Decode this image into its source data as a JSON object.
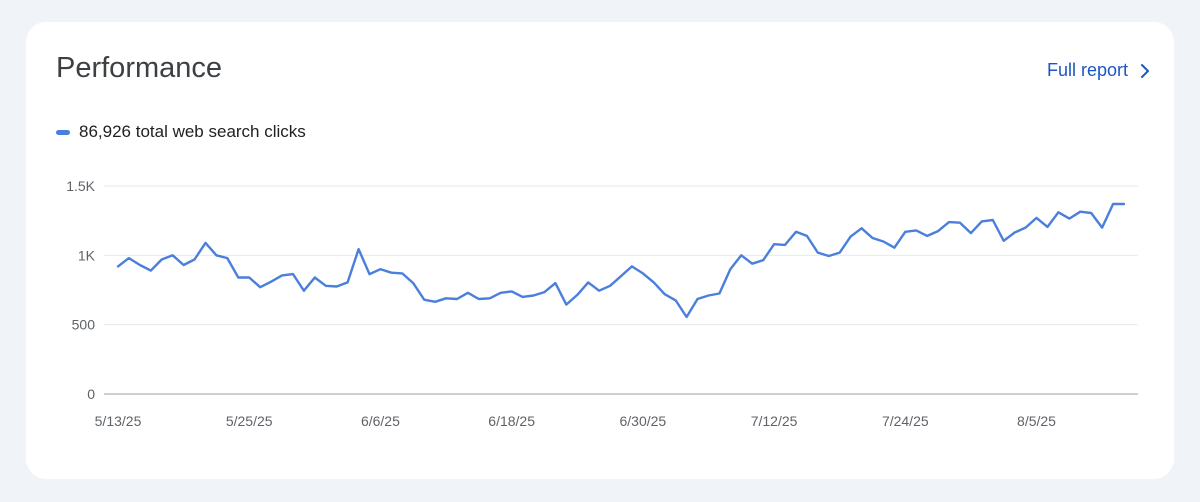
{
  "header": {
    "title": "Performance",
    "full_report_label": "Full report"
  },
  "legend": {
    "label": "86,926 total web search clicks",
    "color": "#4a7fdc"
  },
  "chart_data": {
    "type": "line",
    "title": "",
    "xlabel": "",
    "ylabel": "",
    "ylim": [
      0,
      1500
    ],
    "y_ticks": [
      {
        "value": 0,
        "label": "0"
      },
      {
        "value": 500,
        "label": "500"
      },
      {
        "value": 1000,
        "label": "1K"
      },
      {
        "value": 1500,
        "label": "1.5K"
      }
    ],
    "x_ticks": [
      {
        "date": "2025-05-13",
        "label": "5/13/25"
      },
      {
        "date": "2025-05-25",
        "label": "5/25/25"
      },
      {
        "date": "2025-06-06",
        "label": "6/6/25"
      },
      {
        "date": "2025-06-18",
        "label": "6/18/25"
      },
      {
        "date": "2025-06-30",
        "label": "6/30/25"
      },
      {
        "date": "2025-07-12",
        "label": "7/12/25"
      },
      {
        "date": "2025-07-24",
        "label": "7/24/25"
      },
      {
        "date": "2025-08-05",
        "label": "8/5/25"
      }
    ],
    "grid": true,
    "legend_position": "top-left",
    "series": [
      {
        "color": "#4a7fdc",
        "x": [
          "2025-05-13",
          "2025-05-14",
          "2025-05-15",
          "2025-05-16",
          "2025-05-17",
          "2025-05-18",
          "2025-05-19",
          "2025-05-20",
          "2025-05-21",
          "2025-05-22",
          "2025-05-23",
          "2025-05-24",
          "2025-05-25",
          "2025-05-26",
          "2025-05-27",
          "2025-05-28",
          "2025-05-29",
          "2025-05-30",
          "2025-05-31",
          "2025-06-01",
          "2025-06-02",
          "2025-06-03",
          "2025-06-04",
          "2025-06-05",
          "2025-06-06",
          "2025-06-07",
          "2025-06-08",
          "2025-06-09",
          "2025-06-10",
          "2025-06-11",
          "2025-06-12",
          "2025-06-13",
          "2025-06-14",
          "2025-06-15",
          "2025-06-16",
          "2025-06-17",
          "2025-06-18",
          "2025-06-19",
          "2025-06-20",
          "2025-06-21",
          "2025-06-22",
          "2025-06-23",
          "2025-06-24",
          "2025-06-25",
          "2025-06-26",
          "2025-06-27",
          "2025-06-28",
          "2025-06-29",
          "2025-06-30",
          "2025-07-01",
          "2025-07-02",
          "2025-07-03",
          "2025-07-04",
          "2025-07-05",
          "2025-07-06",
          "2025-07-07",
          "2025-07-08",
          "2025-07-09",
          "2025-07-10",
          "2025-07-11",
          "2025-07-12",
          "2025-07-13",
          "2025-07-14",
          "2025-07-15",
          "2025-07-16",
          "2025-07-17",
          "2025-07-18",
          "2025-07-19",
          "2025-07-20",
          "2025-07-21",
          "2025-07-22",
          "2025-07-23",
          "2025-07-24",
          "2025-07-25",
          "2025-07-26",
          "2025-07-27",
          "2025-07-28",
          "2025-07-29",
          "2025-07-30",
          "2025-07-31",
          "2025-08-01",
          "2025-08-02",
          "2025-08-03",
          "2025-08-04",
          "2025-08-05",
          "2025-08-06",
          "2025-08-07",
          "2025-08-08",
          "2025-08-09",
          "2025-08-10",
          "2025-08-11",
          "2025-08-12",
          "2025-08-13"
        ],
        "values": [
          920,
          980,
          930,
          890,
          970,
          1000,
          930,
          970,
          1090,
          1000,
          980,
          840,
          840,
          770,
          810,
          855,
          865,
          745,
          840,
          780,
          775,
          805,
          1045,
          865,
          900,
          875,
          870,
          800,
          680,
          665,
          690,
          685,
          730,
          685,
          690,
          730,
          740,
          700,
          710,
          735,
          800,
          645,
          715,
          805,
          745,
          780,
          850,
          920,
          870,
          805,
          720,
          675,
          555,
          685,
          710,
          725,
          900,
          1000,
          940,
          965,
          1080,
          1075,
          1170,
          1140,
          1020,
          995,
          1020,
          1135,
          1195,
          1125,
          1100,
          1055,
          1170,
          1180,
          1140,
          1175,
          1240,
          1235,
          1160,
          1245,
          1255,
          1105,
          1165,
          1200,
          1270,
          1205,
          1310,
          1265,
          1315,
          1305,
          1200,
          1370,
          1370
        ]
      }
    ]
  }
}
